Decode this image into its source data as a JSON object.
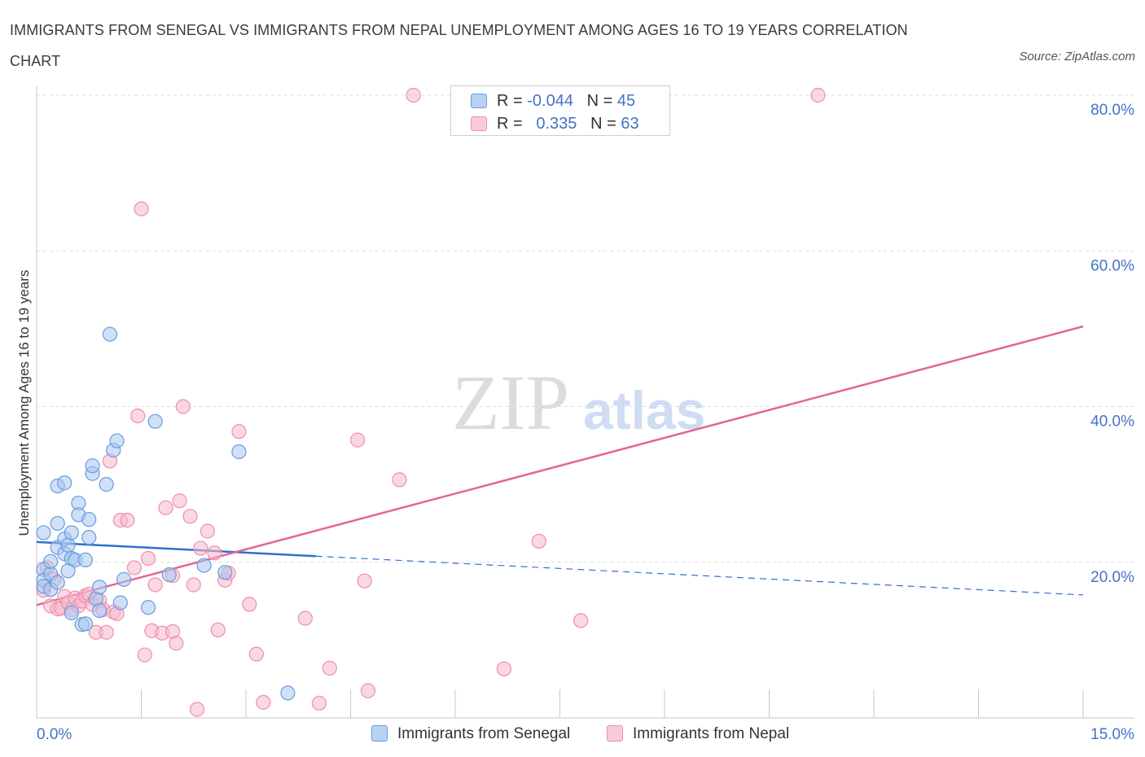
{
  "title": "IMMIGRANTS FROM SENEGAL VS IMMIGRANTS FROM NEPAL UNEMPLOYMENT AMONG AGES 16 TO 19 YEARS CORRELATION CHART",
  "source": "Source: ZipAtlas.com",
  "watermark": {
    "zip": "ZIP",
    "atlas": "atlas"
  },
  "colors": {
    "senegal_fill": "#a8c6f0",
    "senegal_stroke": "#6a9be0",
    "senegal_line": "#2f6fce",
    "nepal_fill": "#f6b8cb",
    "nepal_stroke": "#ee8eab",
    "nepal_line": "#e46690",
    "grid": "#dcdcdc",
    "axis_text": "#4472c4"
  },
  "legend": {
    "rows": [
      {
        "r_label": "R = ",
        "r_value": "-0.044",
        "n_label": "N = ",
        "n_value": "45"
      },
      {
        "r_label": "R = ",
        "r_value": "0.335",
        "n_label": "N = ",
        "n_value": "63"
      }
    ]
  },
  "chart_data": {
    "type": "scatter",
    "title": "IMMIGRANTS FROM SENEGAL VS IMMIGRANTS FROM NEPAL UNEMPLOYMENT AMONG AGES 16 TO 19 YEARS CORRELATION CHART",
    "xlabel": "",
    "ylabel": "Unemployment Among Ages 16 to 19 years",
    "xlim": [
      0,
      15
    ],
    "ylim": [
      0,
      80
    ],
    "x_tick_labels": [
      "0.0%",
      "15.0%"
    ],
    "y_ticks": [
      20,
      40,
      60,
      80
    ],
    "y_tick_labels": [
      "20.0%",
      "40.0%",
      "60.0%",
      "80.0%"
    ],
    "grid": true,
    "series": [
      {
        "name": "Immigrants from Senegal",
        "r": -0.044,
        "n": 45,
        "trend": {
          "x": [
            0,
            15
          ],
          "y": [
            22.6,
            15.8
          ],
          "solid_until_x": 4.0
        },
        "points": [
          [
            0.1,
            23.8
          ],
          [
            0.1,
            19.1
          ],
          [
            0.1,
            17.7
          ],
          [
            0.1,
            16.9
          ],
          [
            0.2,
            18.5
          ],
          [
            0.2,
            16.5
          ],
          [
            0.2,
            20.1
          ],
          [
            0.3,
            29.8
          ],
          [
            0.3,
            25.0
          ],
          [
            0.3,
            21.9
          ],
          [
            0.4,
            30.2
          ],
          [
            0.4,
            23.0
          ],
          [
            0.4,
            21.1
          ],
          [
            0.45,
            18.9
          ],
          [
            0.45,
            22.2
          ],
          [
            0.5,
            13.5
          ],
          [
            0.5,
            20.5
          ],
          [
            0.5,
            23.8
          ],
          [
            0.55,
            20.3
          ],
          [
            0.6,
            27.6
          ],
          [
            0.6,
            26.1
          ],
          [
            0.65,
            12.0
          ],
          [
            0.7,
            20.3
          ],
          [
            0.7,
            12.1
          ],
          [
            0.75,
            25.5
          ],
          [
            0.75,
            23.2
          ],
          [
            0.8,
            31.4
          ],
          [
            0.8,
            32.4
          ],
          [
            0.85,
            15.3
          ],
          [
            0.9,
            16.8
          ],
          [
            0.9,
            13.8
          ],
          [
            1.0,
            30.0
          ],
          [
            1.05,
            49.3
          ],
          [
            1.1,
            34.4
          ],
          [
            1.15,
            35.6
          ],
          [
            1.2,
            14.8
          ],
          [
            1.25,
            17.8
          ],
          [
            1.6,
            14.2
          ],
          [
            1.7,
            38.1
          ],
          [
            1.9,
            18.4
          ],
          [
            2.4,
            19.6
          ],
          [
            2.7,
            18.7
          ],
          [
            2.9,
            34.2
          ],
          [
            3.6,
            3.2
          ],
          [
            0.3,
            17.4
          ]
        ]
      },
      {
        "name": "Immigrants from Nepal",
        "r": 0.335,
        "n": 63,
        "trend": {
          "x": [
            0,
            15
          ],
          "y": [
            14.5,
            50.3
          ]
        },
        "points": [
          [
            0.1,
            16.4
          ],
          [
            0.15,
            19.3
          ],
          [
            0.2,
            14.4
          ],
          [
            0.25,
            17.8
          ],
          [
            0.3,
            14.0
          ],
          [
            0.35,
            14.1
          ],
          [
            0.4,
            15.6
          ],
          [
            0.45,
            14.8
          ],
          [
            0.5,
            13.9
          ],
          [
            0.55,
            15.4
          ],
          [
            0.6,
            14.4
          ],
          [
            0.65,
            15.0
          ],
          [
            0.7,
            15.7
          ],
          [
            0.75,
            15.9
          ],
          [
            0.8,
            14.6
          ],
          [
            0.85,
            11.0
          ],
          [
            0.9,
            15.1
          ],
          [
            0.95,
            13.9
          ],
          [
            1.0,
            11.0
          ],
          [
            1.05,
            33.0
          ],
          [
            1.1,
            13.6
          ],
          [
            1.15,
            13.4
          ],
          [
            1.2,
            25.4
          ],
          [
            1.3,
            25.4
          ],
          [
            1.4,
            19.3
          ],
          [
            1.45,
            38.8
          ],
          [
            1.5,
            65.4
          ],
          [
            1.55,
            8.1
          ],
          [
            1.6,
            20.5
          ],
          [
            1.65,
            11.2
          ],
          [
            1.7,
            17.1
          ],
          [
            1.8,
            10.9
          ],
          [
            1.85,
            27.0
          ],
          [
            1.95,
            18.3
          ],
          [
            1.95,
            11.1
          ],
          [
            2.0,
            9.6
          ],
          [
            2.05,
            27.9
          ],
          [
            2.1,
            40.0
          ],
          [
            2.2,
            25.9
          ],
          [
            2.25,
            17.1
          ],
          [
            2.3,
            1.1
          ],
          [
            2.35,
            21.8
          ],
          [
            2.45,
            24.0
          ],
          [
            2.55,
            21.2
          ],
          [
            2.6,
            11.3
          ],
          [
            2.7,
            17.7
          ],
          [
            2.75,
            18.6
          ],
          [
            2.9,
            36.8
          ],
          [
            3.05,
            14.6
          ],
          [
            3.15,
            8.2
          ],
          [
            3.25,
            2.0
          ],
          [
            3.85,
            12.8
          ],
          [
            4.05,
            1.9
          ],
          [
            4.2,
            6.4
          ],
          [
            4.6,
            35.7
          ],
          [
            4.7,
            17.6
          ],
          [
            4.75,
            3.5
          ],
          [
            5.2,
            30.6
          ],
          [
            5.4,
            80.0
          ],
          [
            6.7,
            6.3
          ],
          [
            7.2,
            22.7
          ],
          [
            7.8,
            12.5
          ],
          [
            11.2,
            80.0
          ]
        ]
      }
    ]
  }
}
